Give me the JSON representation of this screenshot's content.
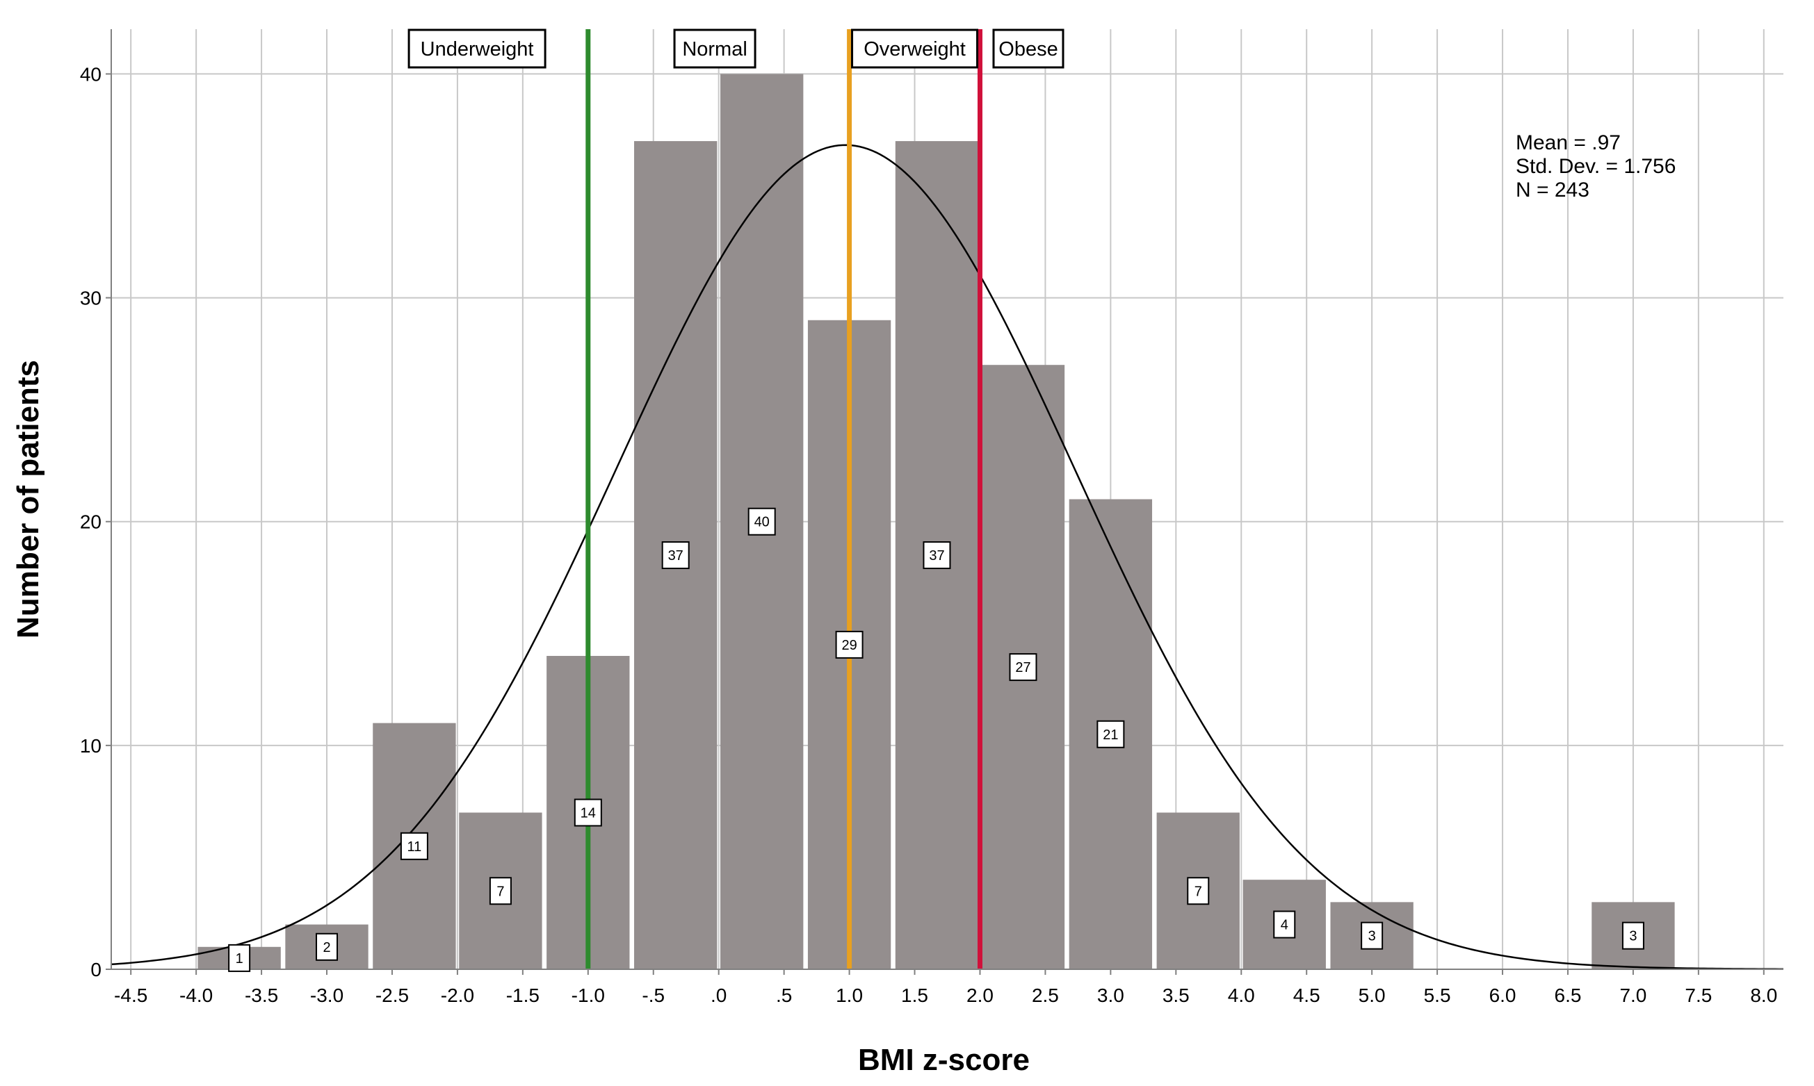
{
  "chart_data": {
    "type": "bar",
    "subtype": "histogram",
    "xlabel": "BMI z-score",
    "ylabel": "Number of patients",
    "xlim": [
      -4.65,
      8.15
    ],
    "ylim": [
      0,
      42
    ],
    "x_ticks": [
      -4.5,
      -4.0,
      -3.5,
      -3.0,
      -2.5,
      -2.0,
      -1.5,
      -1.0,
      -0.5,
      0.0,
      0.5,
      1.0,
      1.5,
      2.0,
      2.5,
      3.0,
      3.5,
      4.0,
      4.5,
      5.0,
      5.5,
      6.0,
      6.5,
      7.0,
      7.5,
      8.0
    ],
    "x_tick_labels": [
      "-4.5",
      "-4.0",
      "-3.5",
      "-3.0",
      "-2.5",
      "-2.0",
      "-1.5",
      "-1.0",
      "-.5",
      ".0",
      ".5",
      "1.0",
      "1.5",
      "2.0",
      "2.5",
      "3.0",
      "3.5",
      "4.0",
      "4.5",
      "5.0",
      "5.5",
      "6.0",
      "6.5",
      "7.0",
      "7.5",
      "8.0"
    ],
    "y_ticks": [
      0,
      10,
      20,
      30,
      40
    ],
    "y_tick_labels": [
      "0",
      "10",
      "20",
      "30",
      "40"
    ],
    "bin_width": 0.667,
    "bins": [
      {
        "center": -3.67,
        "count": 1,
        "label": "1"
      },
      {
        "center": -3.0,
        "count": 2,
        "label": "2"
      },
      {
        "center": -2.33,
        "count": 11,
        "label": "11"
      },
      {
        "center": -1.67,
        "count": 7,
        "label": "7"
      },
      {
        "center": -1.0,
        "count": 14,
        "label": "14"
      },
      {
        "center": -0.33,
        "count": 37,
        "label": "37"
      },
      {
        "center": 0.33,
        "count": 40,
        "label": "40"
      },
      {
        "center": 1.0,
        "count": 29,
        "label": "29"
      },
      {
        "center": 1.67,
        "count": 37,
        "label": "37"
      },
      {
        "center": 2.33,
        "count": 27,
        "label": "27"
      },
      {
        "center": 3.0,
        "count": 21,
        "label": "21"
      },
      {
        "center": 3.67,
        "count": 7,
        "label": "7"
      },
      {
        "center": 4.33,
        "count": 4,
        "label": "4"
      },
      {
        "center": 5.0,
        "count": 3,
        "label": "3"
      },
      {
        "center": 7.0,
        "count": 3,
        "label": "3"
      }
    ],
    "normal_curve": {
      "mean": 0.97,
      "sd": 1.756,
      "n": 243
    },
    "stats_text": [
      "Mean = .97",
      "Std. Dev. = 1.756",
      "N = 243"
    ],
    "reference_lines": [
      {
        "x": -1.0,
        "color": "#2e8b2e"
      },
      {
        "x": 1.0,
        "color": "#e8a020"
      },
      {
        "x": 2.0,
        "color": "#d0103a"
      }
    ],
    "category_labels": [
      {
        "text": "Underweight",
        "x": -1.85
      },
      {
        "text": "Normal",
        "x": -0.03
      },
      {
        "text": "Overweight",
        "x": 1.5
      },
      {
        "text": "Obese",
        "x": 2.37
      }
    ],
    "bar_color": "#948e8e",
    "grid": true
  }
}
